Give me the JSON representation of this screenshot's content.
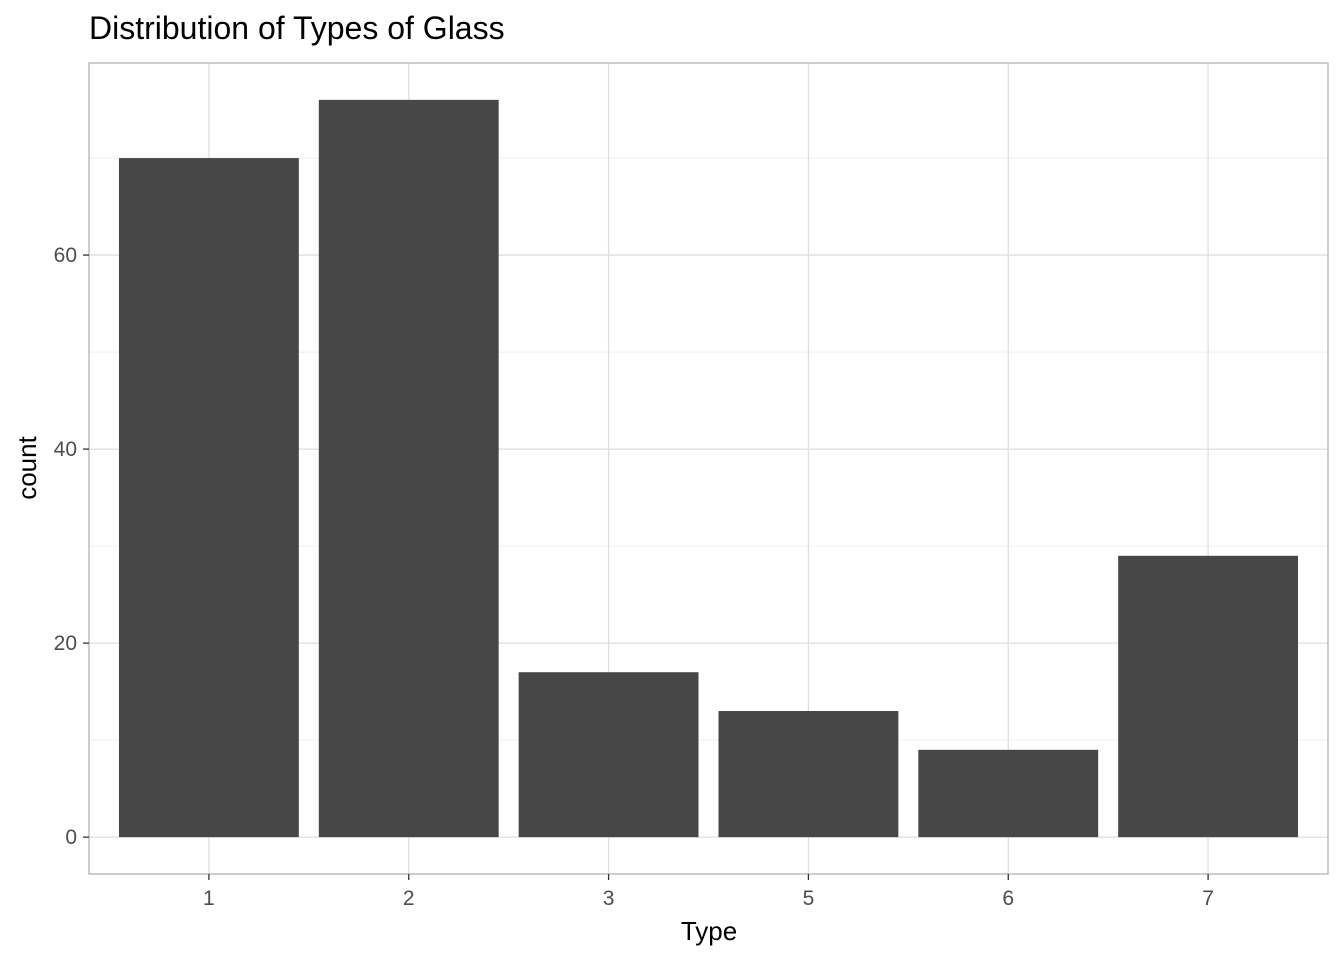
{
  "chart_data": {
    "type": "bar",
    "title": "Distribution of Types of Glass",
    "xlabel": "Type",
    "ylabel": "count",
    "categories": [
      "1",
      "2",
      "3",
      "5",
      "6",
      "7"
    ],
    "values": [
      70,
      76,
      17,
      13,
      9,
      29
    ],
    "ylim": [
      -3.8,
      79.8
    ],
    "yticks": [
      0,
      20,
      40,
      60
    ],
    "grid": true,
    "legend": "none",
    "colors": {
      "bar": "#474747",
      "grid_major": "#dedede",
      "grid_minor": "#efefef",
      "panel_border": "#b3b3b3",
      "background": "#ffffff"
    }
  }
}
